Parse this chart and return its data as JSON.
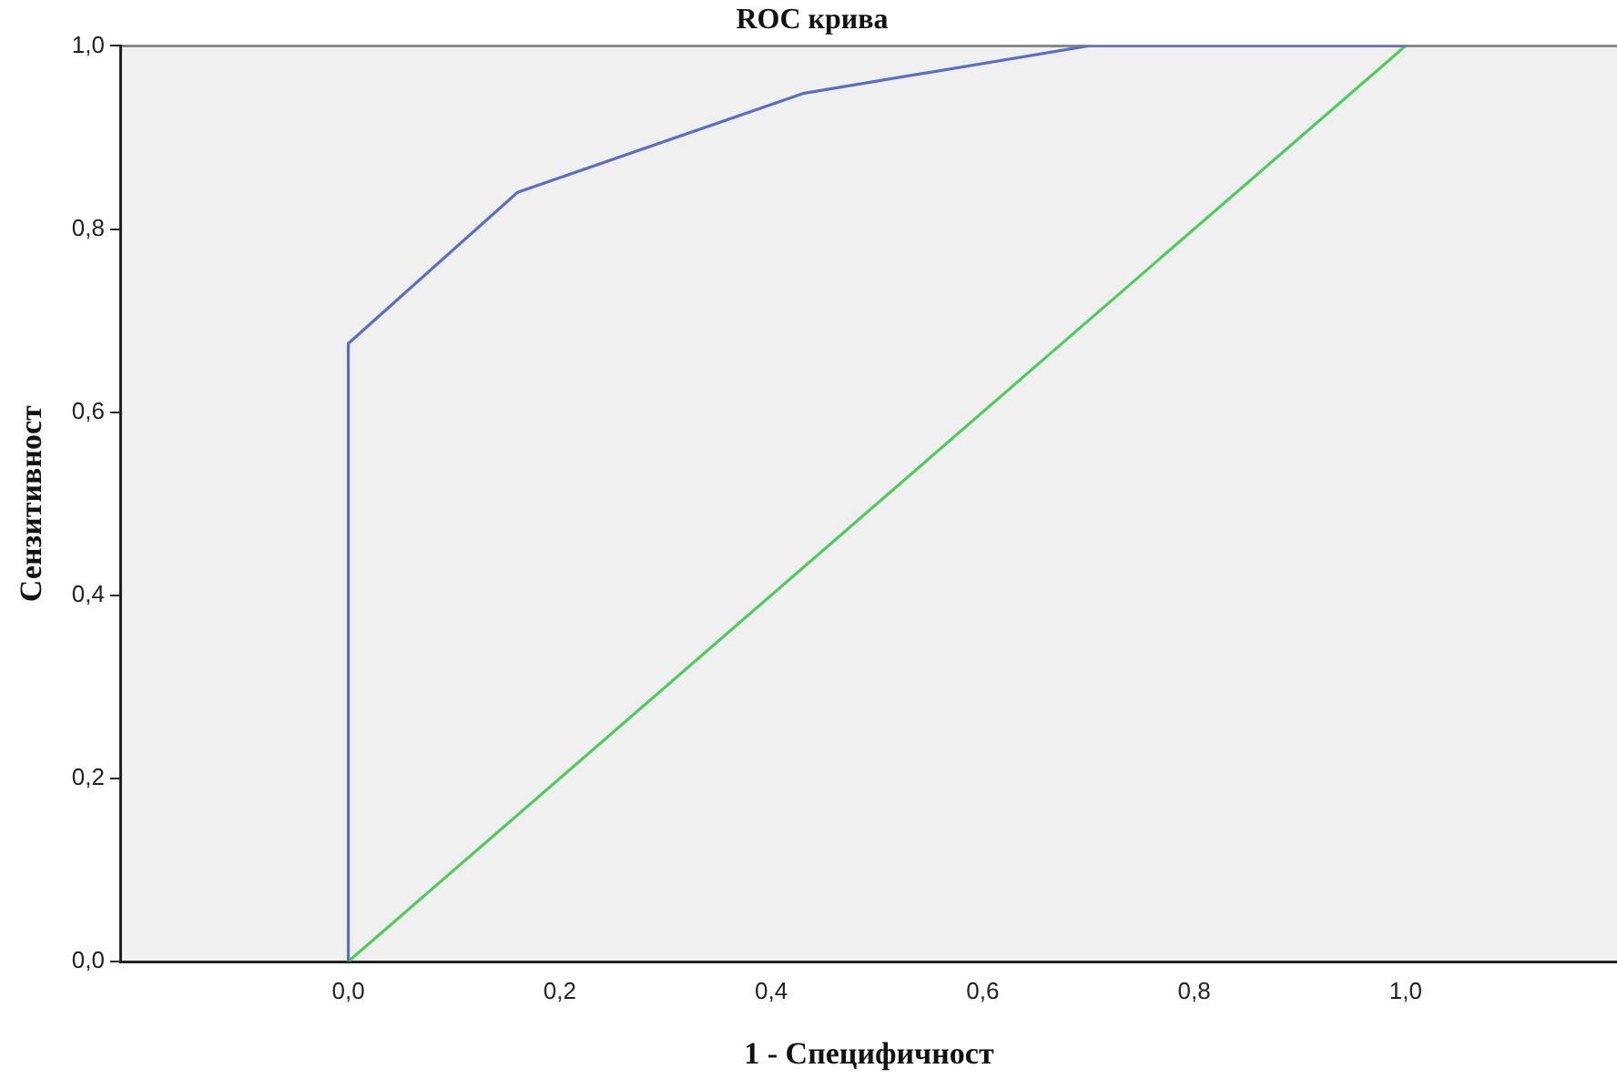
{
  "chart_data": {
    "type": "line",
    "title": "ROC крива",
    "xlabel": "1 - Специфичност",
    "ylabel": "Сензитивност",
    "xlim": [
      -0.215,
      1.2
    ],
    "ylim": [
      0,
      1
    ],
    "xticks": [
      {
        "value": 0,
        "label": "0,0"
      },
      {
        "value": 0.2,
        "label": "0,2"
      },
      {
        "value": 0.4,
        "label": "0,4"
      },
      {
        "value": 0.6,
        "label": "0,6"
      },
      {
        "value": 0.8,
        "label": "0,8"
      },
      {
        "value": 1,
        "label": "1,0"
      }
    ],
    "yticks": [
      {
        "value": 0,
        "label": "0,0"
      },
      {
        "value": 0.2,
        "label": "0,2"
      },
      {
        "value": 0.4,
        "label": "0,4"
      },
      {
        "value": 0.6,
        "label": "0,6"
      },
      {
        "value": 0.8,
        "label": "0,8"
      },
      {
        "value": 1,
        "label": "1,0"
      }
    ],
    "grid": false,
    "legend": false,
    "marker": "none",
    "series": [
      {
        "color": "#5a6ec6",
        "x": [
          0,
          0,
          0.16,
          0.43,
          0.7,
          1
        ],
        "values": [
          0,
          0.675,
          0.84,
          0.948,
          1,
          1
        ]
      },
      {
        "color": "#4ecb5c",
        "x": [
          0,
          1
        ],
        "values": [
          0,
          1
        ]
      }
    ]
  }
}
